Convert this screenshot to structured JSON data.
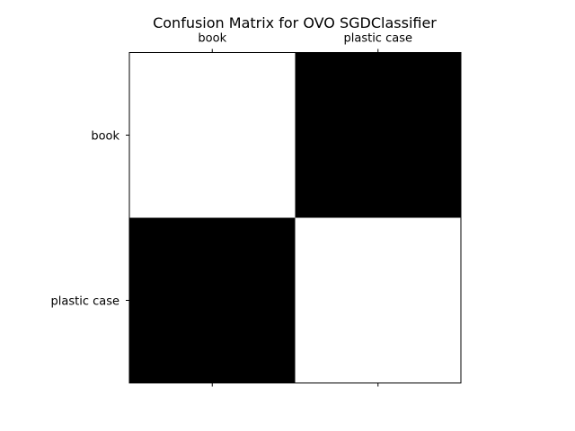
{
  "chart_data": {
    "type": "heatmap",
    "title": "Confusion Matrix for OVO SGDClassifier",
    "x_categories": [
      "book",
      "plastic case"
    ],
    "y_categories": [
      "book",
      "plastic case"
    ],
    "x_tick_position": "top",
    "values": [
      [
        1,
        0
      ],
      [
        0,
        1
      ]
    ],
    "colormap": {
      "low": "#000000",
      "high": "#ffffff"
    },
    "grid": false,
    "colorbar": false
  }
}
